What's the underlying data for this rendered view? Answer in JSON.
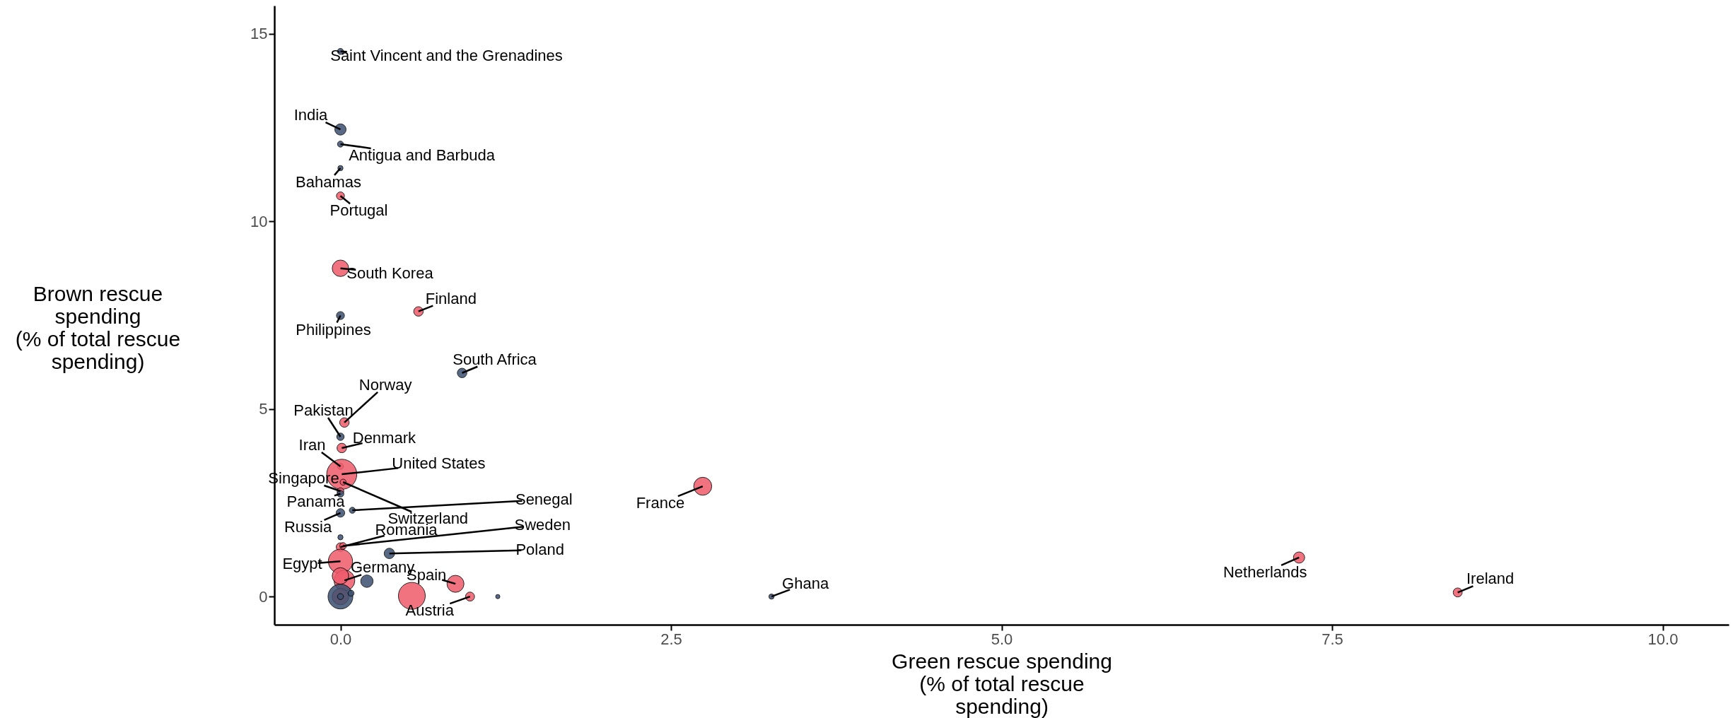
{
  "chart_data": {
    "type": "bubble",
    "xlabel": "Green rescue spending (% of total rescue spending)",
    "ylabel": "Brown rescue spending (% of total rescue spending)",
    "xlim": [
      -0.5,
      10.5
    ],
    "ylim": [
      -0.75,
      15.75
    ],
    "xticks": [
      {
        "value": 0,
        "label": "0.0"
      },
      {
        "value": 2.5,
        "label": "2.5"
      },
      {
        "value": 5,
        "label": "5.0"
      },
      {
        "value": 7.5,
        "label": "7.5"
      },
      {
        "value": 10,
        "label": "10.0"
      }
    ],
    "yticks": [
      0,
      5,
      10,
      15
    ],
    "grid": false,
    "marker": "circle",
    "series": [
      {
        "color": "#ef5b6b",
        "x": [
          0,
          0,
          0.59,
          0.03,
          0.01,
          0,
          0.01,
          0.02,
          0,
          0,
          0.02,
          0,
          0.03,
          0,
          0.87,
          0.54,
          0.98,
          2.74,
          7.25,
          8.45,
          0
        ],
        "values": [
          10.68,
          8.75,
          7.6,
          4.64,
          3.96,
          3.47,
          3.26,
          3.05,
          2.81,
          1.32,
          1.35,
          0.94,
          0.43,
          0.55,
          0.34,
          0.02,
          0,
          2.94,
          1.04,
          0.11,
          0
        ],
        "sizes": [
          0.07,
          0.3,
          0.1,
          0.1,
          0.1,
          0.04,
          1,
          0.04,
          0.05,
          0.08,
          0.05,
          0.65,
          0.48,
          0.3,
          0.32,
          0.8,
          0.09,
          0.36,
          0.14,
          0.09,
          0.3
        ]
      },
      {
        "color": "#3b5070",
        "x": [
          0,
          0,
          0,
          0,
          0,
          0.92,
          0,
          0,
          0.09,
          0,
          0,
          0.37,
          0.2,
          0,
          0.08,
          1.19,
          3.26,
          0
        ],
        "values": [
          14.53,
          12.45,
          12.06,
          11.42,
          7.49,
          5.96,
          4.26,
          2.74,
          2.3,
          2.23,
          1.58,
          1.15,
          0.41,
          0,
          0.09,
          0,
          0,
          0
        ],
        "sizes": [
          0.04,
          0.14,
          0.04,
          0.03,
          0.07,
          0.1,
          0.06,
          0.05,
          0.04,
          0.08,
          0.03,
          0.12,
          0.17,
          0.68,
          0.04,
          0.02,
          0.03,
          0.04
        ]
      }
    ],
    "annotations": [
      {
        "text": "Saint Vincent and the Grenadines",
        "x": 0,
        "y": 14.53
      },
      {
        "text": "India",
        "x": 0,
        "y": 12.45
      },
      {
        "text": "Antigua and Barbuda",
        "x": 0,
        "y": 12.06
      },
      {
        "text": "Bahamas",
        "x": 0,
        "y": 11.42
      },
      {
        "text": "Portugal",
        "x": 0,
        "y": 10.68
      },
      {
        "text": "South Korea",
        "x": 0,
        "y": 8.75
      },
      {
        "text": "Finland",
        "x": 0.59,
        "y": 7.6
      },
      {
        "text": "Philippines",
        "x": 0,
        "y": 7.49
      },
      {
        "text": "South Africa",
        "x": 0.92,
        "y": 5.96
      },
      {
        "text": "Norway",
        "x": 0.03,
        "y": 4.64
      },
      {
        "text": "Pakistan",
        "x": 0,
        "y": 4.26
      },
      {
        "text": "Denmark",
        "x": 0.01,
        "y": 3.96
      },
      {
        "text": "Iran",
        "x": 0,
        "y": 3.47
      },
      {
        "text": "United States",
        "x": 0.01,
        "y": 3.26
      },
      {
        "text": "Singapore",
        "x": 0,
        "y": 2.81
      },
      {
        "text": "Panama",
        "x": 0,
        "y": 2.74
      },
      {
        "text": "Switzerland",
        "x": 0.02,
        "y": 3.05
      },
      {
        "text": "Senegal",
        "x": 0.09,
        "y": 2.3
      },
      {
        "text": "Russia",
        "x": 0,
        "y": 2.23
      },
      {
        "text": "Sweden",
        "x": 0.02,
        "y": 1.35
      },
      {
        "text": "Romania",
        "x": 0,
        "y": 1.32
      },
      {
        "text": "Poland",
        "x": 0.37,
        "y": 1.15
      },
      {
        "text": "Egypt",
        "x": 0,
        "y": 0.94
      },
      {
        "text": "Germany",
        "x": 0.03,
        "y": 0.43
      },
      {
        "text": "Spain",
        "x": 0.87,
        "y": 0.34
      },
      {
        "text": "Austria",
        "x": 0.98,
        "y": 0
      },
      {
        "text": "France",
        "x": 2.74,
        "y": 2.94
      },
      {
        "text": "Ghana",
        "x": 3.26,
        "y": 0
      },
      {
        "text": "Netherlands",
        "x": 7.25,
        "y": 1.04
      },
      {
        "text": "Ireland",
        "x": 8.45,
        "y": 0.11
      }
    ]
  }
}
